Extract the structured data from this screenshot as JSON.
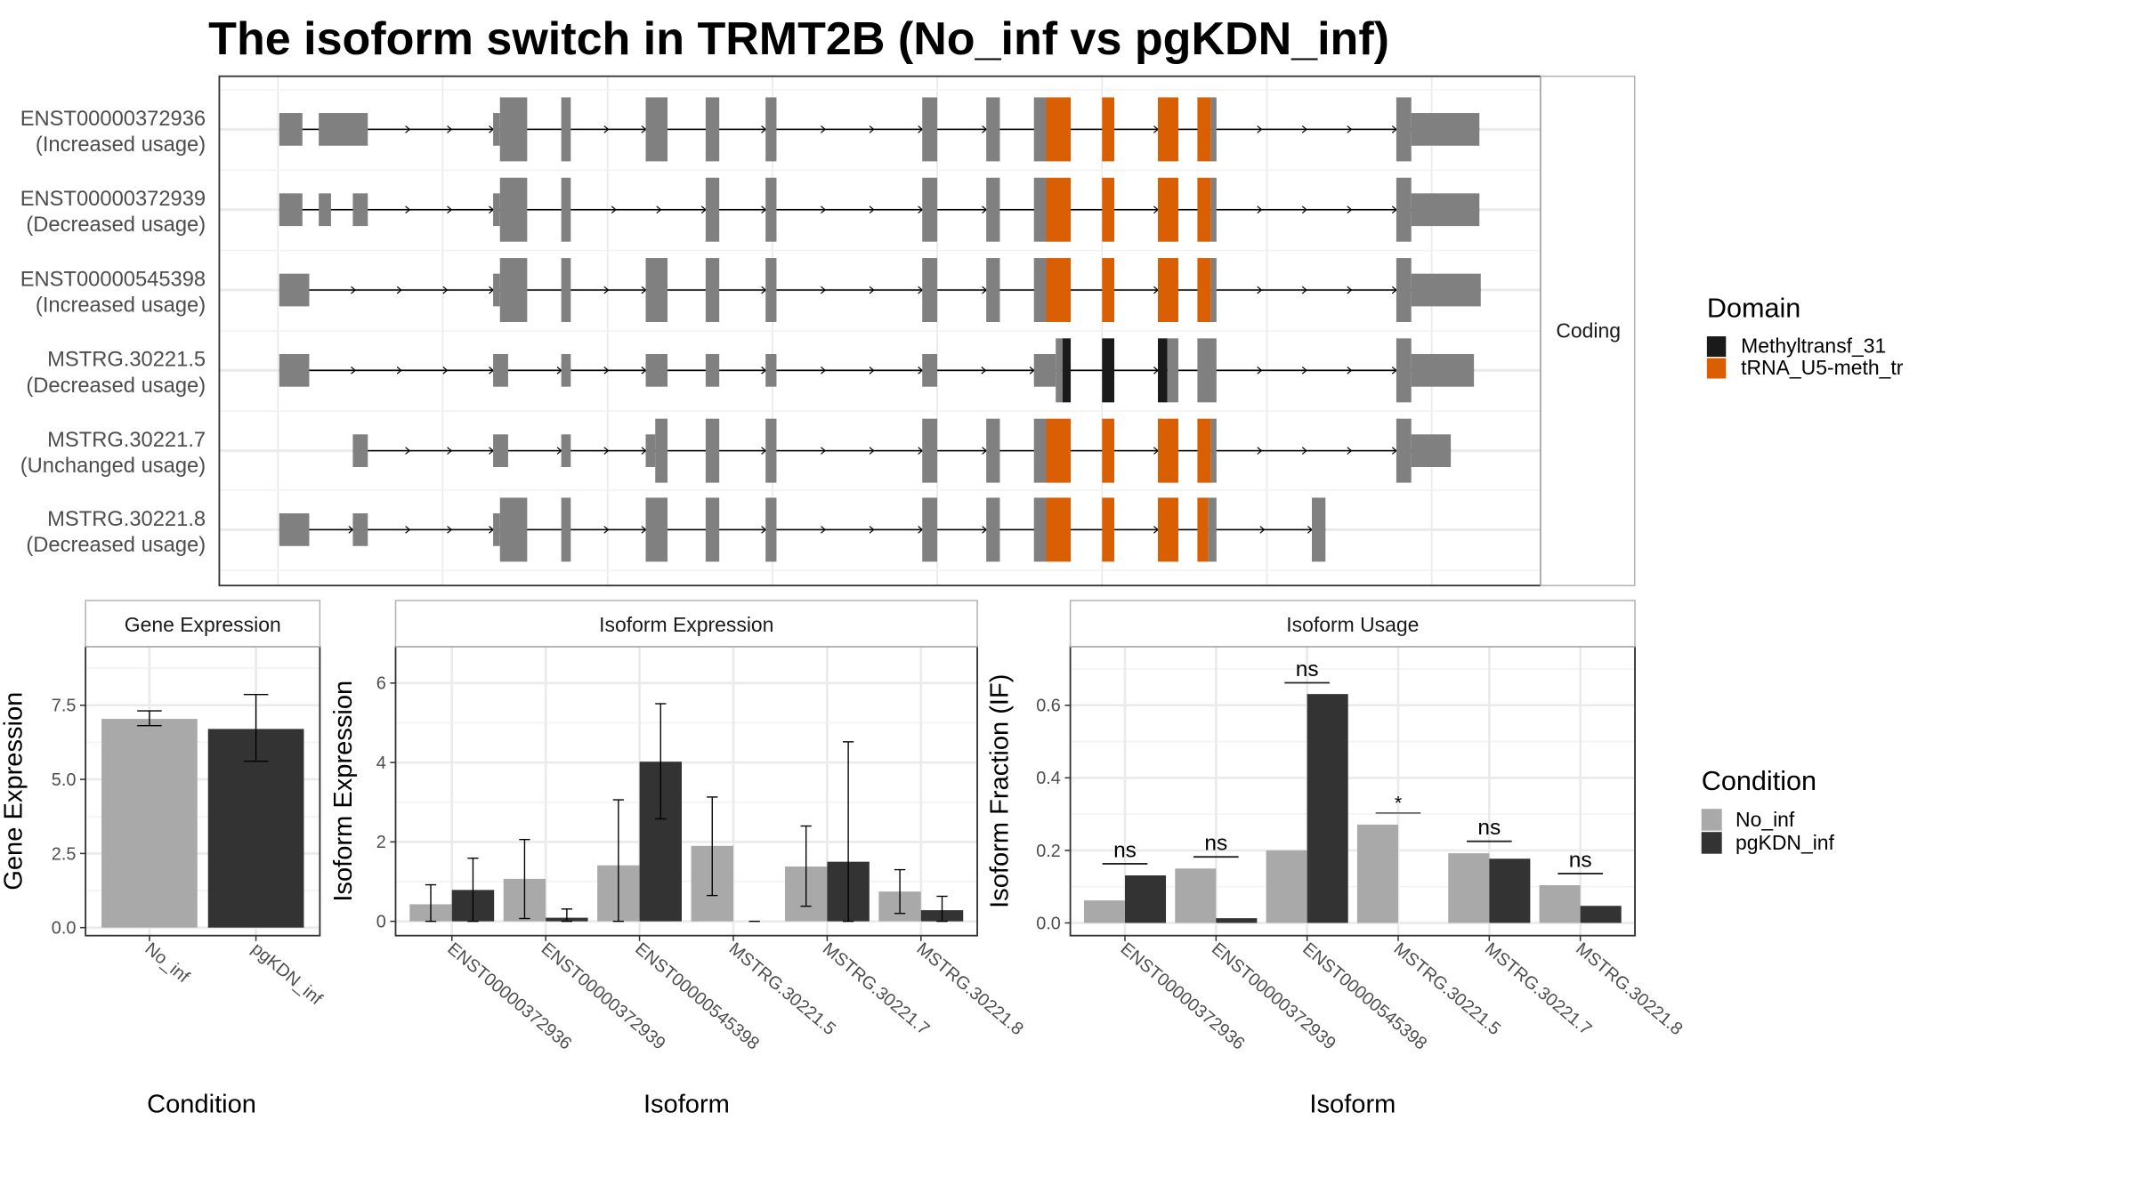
{
  "title": "The isoform switch in TRMT2B (No_inf vs pgKDN_inf)",
  "structure": {
    "transcripts": [
      {
        "id": "ENST00000372936",
        "usage": "(Increased usage)"
      },
      {
        "id": "ENST00000372939",
        "usage": "(Decreased usage)"
      },
      {
        "id": "ENST00000545398",
        "usage": "(Increased usage)"
      },
      {
        "id": "MSTRG.30221.5",
        "usage": "(Decreased usage)"
      },
      {
        "id": "MSTRG.30221.7",
        "usage": "(Unchanged usage)"
      },
      {
        "id": "MSTRG.30221.8",
        "usage": "(Decreased usage)"
      }
    ],
    "strip": "Coding",
    "exon_color": "#808080",
    "legend": {
      "title": "Domain",
      "items": [
        {
          "label": "Methyltransf_31",
          "color": "#1a1a1a"
        },
        {
          "label": "tRNA_U5-meth_tr",
          "color": "#d95f02"
        }
      ]
    }
  },
  "condition_legend": {
    "title": "Condition",
    "items": [
      {
        "label": "No_inf",
        "color": "#a9a9a9"
      },
      {
        "label": "pgKDN_inf",
        "color": "#333333"
      }
    ]
  },
  "chart_data": [
    {
      "type": "bar",
      "title": "Gene Expression",
      "xlabel": "Condition",
      "ylabel": "Gene Expression",
      "categories": [
        "No_inf",
        "pgKDN_inf"
      ],
      "colors": [
        "#a9a9a9",
        "#333333"
      ],
      "values": [
        7.04,
        6.7
      ],
      "error_low": [
        6.81,
        5.61
      ],
      "error_high": [
        7.31,
        7.86
      ],
      "yticks": [
        0,
        2.5,
        5,
        7.5
      ],
      "ytick_labels": [
        "0.0",
        "2.5",
        "5.0",
        "7.5"
      ],
      "ylim": [
        -0.27,
        9.48
      ]
    },
    {
      "type": "bar",
      "title": "Isoform Expression",
      "xlabel": "Isoform",
      "ylabel": "Isoform Expression",
      "categories": [
        "ENST00000372936",
        "ENST00000372939",
        "ENST00000545398",
        "MSTRG.30221.5",
        "MSTRG.30221.7",
        "MSTRG.30221.8"
      ],
      "series": [
        {
          "name": "No_inf",
          "color": "#a9a9a9",
          "values": [
            0.43,
            1.07,
            1.41,
            1.9,
            1.38,
            0.75
          ],
          "error_low": [
            0,
            0.07,
            0,
            0.65,
            0.38,
            0.2
          ],
          "error_high": [
            0.92,
            2.06,
            3.06,
            3.13,
            2.4,
            1.3
          ]
        },
        {
          "name": "pgKDN_inf",
          "color": "#333333",
          "values": [
            0.79,
            0.09,
            4.02,
            0,
            1.5,
            0.28
          ],
          "error_low": [
            0,
            0,
            2.58,
            0,
            0,
            0
          ],
          "error_high": [
            1.59,
            0.31,
            5.48,
            0,
            4.52,
            0.63
          ]
        }
      ],
      "yticks": [
        0,
        2,
        4,
        6
      ],
      "ytick_labels": [
        "0",
        "2",
        "4",
        "6"
      ],
      "ylim": [
        -0.36,
        6.92
      ]
    },
    {
      "type": "bar",
      "title": "Isoform Usage",
      "xlabel": "Isoform",
      "ylabel": "Isoform Fraction (IF)",
      "categories": [
        "ENST00000372936",
        "ENST00000372939",
        "ENST00000545398",
        "MSTRG.30221.5",
        "MSTRG.30221.7",
        "MSTRG.30221.8"
      ],
      "series": [
        {
          "name": "No_inf",
          "color": "#a9a9a9",
          "values": [
            0.062,
            0.15,
            0.2,
            0.271,
            0.192,
            0.104
          ]
        },
        {
          "name": "pgKDN_inf",
          "color": "#333333",
          "values": [
            0.131,
            0.013,
            0.631,
            0,
            0.177,
            0.047
          ]
        }
      ],
      "significance": [
        {
          "label": "ns",
          "y": 0.163
        },
        {
          "label": "ns",
          "y": 0.182
        },
        {
          "label": "ns",
          "y": 0.662
        },
        {
          "label": "*",
          "y": 0.303
        },
        {
          "label": "ns",
          "y": 0.225
        },
        {
          "label": "ns",
          "y": 0.136
        }
      ],
      "yticks": [
        0,
        0.2,
        0.4,
        0.6
      ],
      "ytick_labels": [
        "0.0",
        "0.2",
        "0.4",
        "0.6"
      ],
      "ylim": [
        -0.035,
        0.762
      ]
    }
  ]
}
